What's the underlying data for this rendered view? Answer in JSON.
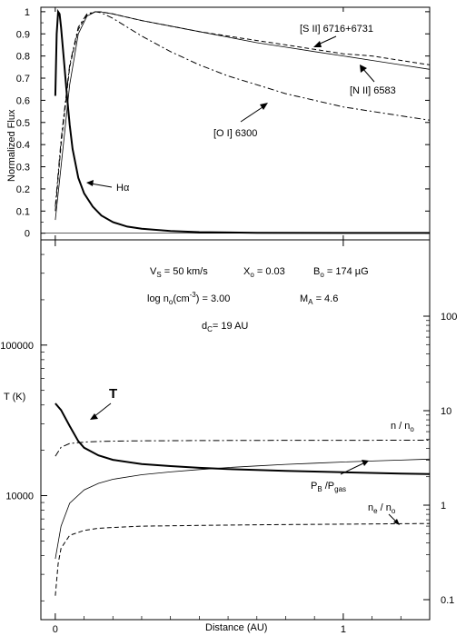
{
  "chart_data": [
    {
      "type": "line",
      "xlabel": "",
      "ylabel": "Normalized Flux",
      "xlim": [
        -0.05,
        1.3
      ],
      "ylim": [
        -0.03,
        1.02
      ],
      "y_ticks": [
        0,
        0.1,
        0.2,
        0.3,
        0.4,
        0.5,
        0.6,
        0.7,
        0.8,
        0.9,
        1
      ],
      "x_ticks": [
        0,
        1
      ],
      "grid": false,
      "series": [
        {
          "name": "Hα",
          "style": "solid-thick",
          "x": [
            0,
            0.005,
            0.01,
            0.015,
            0.02,
            0.03,
            0.04,
            0.05,
            0.06,
            0.08,
            0.1,
            0.13,
            0.16,
            0.2,
            0.25,
            0.3,
            0.4,
            0.5,
            0.7,
            1,
            1.3
          ],
          "y": [
            0.62,
            0.9,
            1.0,
            0.99,
            0.93,
            0.78,
            0.63,
            0.49,
            0.38,
            0.25,
            0.18,
            0.12,
            0.08,
            0.05,
            0.03,
            0.02,
            0.01,
            0.005,
            0.002,
            0.001,
            0.001
          ]
        },
        {
          "name": "[S II] 6716+6731",
          "style": "dashed",
          "x": [
            0,
            0.02,
            0.05,
            0.08,
            0.11,
            0.14,
            0.16,
            0.2,
            0.25,
            0.3,
            0.4,
            0.5,
            0.6,
            0.7,
            0.8,
            0.9,
            1,
            1.1,
            1.2,
            1.3
          ],
          "y": [
            0.1,
            0.4,
            0.75,
            0.92,
            0.985,
            1.0,
            0.999,
            0.99,
            0.975,
            0.96,
            0.935,
            0.91,
            0.89,
            0.87,
            0.85,
            0.83,
            0.81,
            0.8,
            0.78,
            0.76
          ]
        },
        {
          "name": "[N II] 6583",
          "style": "solid-thin",
          "x": [
            0,
            0.02,
            0.05,
            0.08,
            0.11,
            0.14,
            0.16,
            0.2,
            0.25,
            0.3,
            0.4,
            0.5,
            0.6,
            0.7,
            0.8,
            0.9,
            1,
            1.1,
            1.2,
            1.3
          ],
          "y": [
            0.06,
            0.3,
            0.67,
            0.9,
            0.98,
            1.0,
            0.999,
            0.99,
            0.975,
            0.96,
            0.935,
            0.91,
            0.885,
            0.86,
            0.84,
            0.82,
            0.8,
            0.78,
            0.76,
            0.74
          ]
        },
        {
          "name": "[O I] 6300",
          "style": "dash-dot",
          "x": [
            0,
            0.02,
            0.05,
            0.08,
            0.11,
            0.14,
            0.16,
            0.2,
            0.25,
            0.3,
            0.4,
            0.5,
            0.6,
            0.7,
            0.8,
            0.9,
            1,
            1.1,
            1.2,
            1.3
          ],
          "y": [
            0.12,
            0.42,
            0.76,
            0.93,
            0.99,
            1.0,
            0.995,
            0.97,
            0.93,
            0.89,
            0.82,
            0.76,
            0.71,
            0.67,
            0.63,
            0.6,
            0.57,
            0.55,
            0.53,
            0.51
          ]
        }
      ],
      "annotations": [
        "[S II] 6716+6731",
        "[N II] 6583",
        "[O I] 6300",
        "Hα"
      ]
    },
    {
      "type": "line",
      "xlabel": "Distance (AU)",
      "ylabel": "T (K)",
      "xlim": [
        -0.05,
        1.3
      ],
      "ylim": [
        1500,
        500000
      ],
      "yscale": "log",
      "y_ticks": [
        10000,
        100000
      ],
      "y_tick_labels": [
        "10000",
        "100000"
      ],
      "y2_ticks": [
        0.1,
        1,
        10,
        100
      ],
      "y2_tick_labels": [
        "0.1",
        "1",
        "10",
        "100"
      ],
      "y2_scale": "log",
      "x_ticks": [
        0,
        1
      ],
      "x_tick_labels": [
        "0",
        "1"
      ],
      "grid": false,
      "series": [
        {
          "name": "T",
          "axis": "left",
          "style": "solid-thick",
          "x": [
            0,
            0.02,
            0.05,
            0.08,
            0.1,
            0.15,
            0.2,
            0.3,
            0.4,
            0.5,
            0.6,
            0.8,
            1,
            1.2,
            1.3
          ],
          "y": [
            41000,
            37000,
            29000,
            23000,
            20800,
            18500,
            17300,
            16200,
            15700,
            15300,
            15000,
            14600,
            14300,
            14000,
            13900
          ]
        },
        {
          "name": "n / n₀",
          "axis": "right",
          "style": "dash-dot",
          "x": [
            0,
            0.02,
            0.05,
            0.1,
            0.15,
            0.2,
            0.3,
            0.5,
            0.7,
            1,
            1.3
          ],
          "y": [
            3.3,
            4.1,
            4.5,
            4.65,
            4.72,
            4.76,
            4.8,
            4.83,
            4.85,
            4.86,
            4.87
          ]
        },
        {
          "name": "P_B / P_gas",
          "axis": "right",
          "style": "solid-thin",
          "x": [
            0,
            0.02,
            0.05,
            0.1,
            0.15,
            0.2,
            0.3,
            0.4,
            0.5,
            0.6,
            0.7,
            0.8,
            0.9,
            1,
            1.1,
            1.2,
            1.3
          ],
          "y": [
            0.27,
            0.6,
            1.05,
            1.45,
            1.7,
            1.88,
            2.1,
            2.25,
            2.38,
            2.5,
            2.6,
            2.7,
            2.78,
            2.86,
            2.93,
            3.0,
            3.07
          ]
        },
        {
          "name": "n_e / n₀",
          "axis": "right",
          "style": "dashed",
          "x": [
            0,
            0.01,
            0.02,
            0.05,
            0.1,
            0.15,
            0.2,
            0.3,
            0.5,
            0.7,
            1,
            1.3
          ],
          "y": [
            0.11,
            0.24,
            0.35,
            0.48,
            0.54,
            0.57,
            0.58,
            0.6,
            0.61,
            0.62,
            0.63,
            0.64
          ]
        }
      ],
      "params": {
        "line1": [
          "VS = 50 km/s",
          "Xo = 0.03",
          "Bo = 174 µG"
        ],
        "line2": [
          "log no(cm⁻³) = 3.00",
          "MA = 4.6"
        ],
        "line3": [
          "dC = 19 AU"
        ]
      }
    }
  ],
  "labels": {
    "top_ylabel": "Normalized Flux",
    "bottom_ylabel": "T (K)",
    "xlabel": "Distance (AU)",
    "sii": "[S II] 6716+6731",
    "nii": "[N II] 6583",
    "oi": "[O I] 6300",
    "ha": "Hα",
    "T": "T",
    "n_ratio": "n / n",
    "n_sub": "o",
    "pb": "P",
    "pb_sub": "B",
    "pgas": " /P",
    "pgas_sub": "gas",
    "ne": "n",
    "ne_sub": "e",
    "ne_rest": " / n",
    "ne_sub2": "o",
    "p_vs": "V",
    "p_vs_sub": "S",
    "p_vs_val": " = 50 km/s",
    "p_xo": "X",
    "p_xo_sub": "o",
    "p_xo_val": " = 0.03",
    "p_bo": "B",
    "p_bo_sub": "o",
    "p_bo_val": " = 174 µG",
    "p_log": "log n",
    "p_log_sub": "o",
    "p_log_val": "(cm",
    "p_log_exp": "-3",
    "p_log_end": ") = 3.00",
    "p_ma": "M",
    "p_ma_sub": "A",
    "p_ma_val": " = 4.6",
    "p_dc": "d",
    "p_dc_sub": "C",
    "p_dc_val": "=  19 AU"
  },
  "colors": {
    "line": "#000000",
    "background": "#ffffff"
  }
}
